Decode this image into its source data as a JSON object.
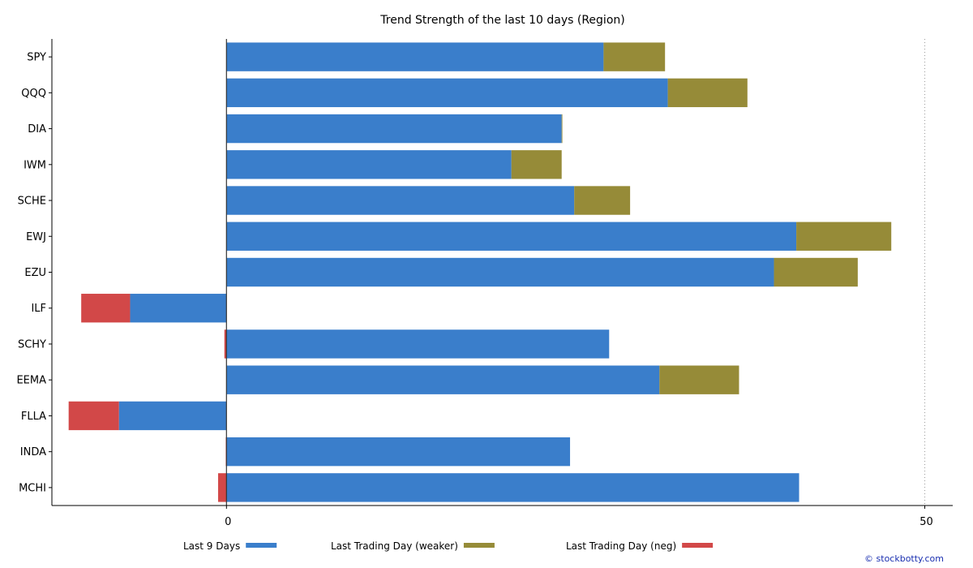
{
  "chart_data": {
    "type": "bar",
    "orientation": "horizontal",
    "stacked": true,
    "title": "Trend Strength of the last 10 days (Region)",
    "xlabel": "",
    "ylabel": "",
    "xlim": [
      -12.5,
      52
    ],
    "xticks": [
      0,
      50
    ],
    "categories": [
      "SPY",
      "QQQ",
      "DIA",
      "IWM",
      "SCHE",
      "EWJ",
      "EZU",
      "ILF",
      "SCHY",
      "EEMA",
      "FLLA",
      "INDA",
      "MCHI"
    ],
    "series": [
      {
        "name": "Last 9 Days",
        "color": "#3a7ecb",
        "values": [
          27.0,
          31.6,
          24.0,
          20.4,
          24.9,
          40.8,
          39.2,
          -6.9,
          27.4,
          31.0,
          -7.7,
          24.6,
          41.0
        ]
      },
      {
        "name": "Last Trading Day (weaker)",
        "color": "#968b38",
        "values": [
          4.4,
          5.7,
          0.05,
          3.6,
          4.0,
          6.8,
          6.0,
          0,
          0,
          5.7,
          0,
          0,
          0
        ]
      },
      {
        "name": "Last Trading Day (neg)",
        "color": "#d24848",
        "values": [
          0,
          0,
          0,
          0,
          0,
          0,
          0,
          -3.5,
          -0.15,
          0,
          -3.6,
          -0.05,
          -0.6
        ]
      }
    ],
    "grid": false,
    "reference_lines": [
      {
        "x": 50,
        "style": "dotted"
      }
    ],
    "legend": {
      "position": "bottom-center"
    }
  },
  "credit": "© stockbotty.com"
}
